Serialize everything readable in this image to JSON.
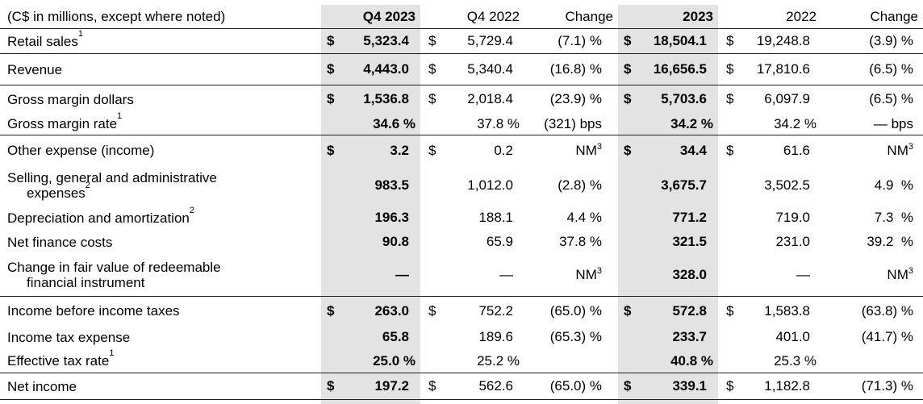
{
  "table": {
    "unit_note": "(C$ in millions, except where noted)",
    "highlight_color": "#e3e3e3",
    "columns": [
      {
        "label": "Q4 2023",
        "hl": true
      },
      {
        "label": "Q4 2022",
        "hl": false
      },
      {
        "label": "Change",
        "hl": false
      },
      {
        "label": "2023",
        "hl": true
      },
      {
        "label": "2022",
        "hl": false
      },
      {
        "label": "Change",
        "hl": false
      }
    ],
    "rows": [
      {
        "id": "retail-sales",
        "rule_below": true,
        "label": [
          {
            "text": "Retail sales",
            "sup": "1"
          }
        ],
        "cells": [
          {
            "d": "$",
            "v": "5,323.4"
          },
          {
            "d": "$",
            "v": "5,729.4"
          },
          {
            "v": "(7.1) %"
          },
          {
            "d": "$",
            "v": "18,504.1"
          },
          {
            "d": "$",
            "v": "19,248.8"
          },
          {
            "v": "(3.9) %"
          }
        ]
      },
      {
        "id": "revenue",
        "rule_below": true,
        "label": [
          {
            "text": "Revenue"
          }
        ],
        "cells": [
          {
            "d": "$",
            "v": "4,443.0"
          },
          {
            "d": "$",
            "v": "5,340.4"
          },
          {
            "v": "(16.8) %"
          },
          {
            "d": "$",
            "v": "16,656.5"
          },
          {
            "d": "$",
            "v": "17,810.6"
          },
          {
            "v": "(6.5) %"
          }
        ]
      },
      {
        "id": "gross-margin-dollars",
        "rule_below": false,
        "label": [
          {
            "text": "Gross margin dollars"
          }
        ],
        "cells": [
          {
            "d": "$",
            "v": "1,536.8"
          },
          {
            "d": "$",
            "v": "2,018.4"
          },
          {
            "v": "(23.9) %"
          },
          {
            "d": "$",
            "v": "5,703.6"
          },
          {
            "d": "$",
            "v": "6,097.9"
          },
          {
            "v": "(6.5) %"
          }
        ]
      },
      {
        "id": "gross-margin-rate",
        "rule_below": true,
        "label": [
          {
            "text": "Gross margin rate",
            "sup": "1"
          }
        ],
        "cells": [
          {
            "v": "34.6 %"
          },
          {
            "v": "37.8 %"
          },
          {
            "v": "(321) bps"
          },
          {
            "v": "34.2 %"
          },
          {
            "v": "34.2 %"
          },
          {
            "v": "— bps"
          }
        ]
      },
      {
        "id": "other-expense",
        "rule_below": false,
        "label": [
          {
            "text": "Other expense (income)"
          }
        ],
        "cells": [
          {
            "d": "$",
            "v": "3.2"
          },
          {
            "d": "$",
            "v": "0.2"
          },
          {
            "v": "NM",
            "sup": "3"
          },
          {
            "d": "$",
            "v": "34.4"
          },
          {
            "d": "$",
            "v": "61.6"
          },
          {
            "v": "NM",
            "sup": "3"
          }
        ]
      },
      {
        "id": "sga-expenses",
        "rule_below": false,
        "label": [
          {
            "text": "Selling, general and administrative"
          },
          {
            "text": "expenses",
            "sup": "2"
          }
        ],
        "cells": [
          {
            "v": "983.5"
          },
          {
            "v": "1,012.0"
          },
          {
            "v": "(2.8) %"
          },
          {
            "v": "3,675.7"
          },
          {
            "v": "3,502.5"
          },
          {
            "v": "4.9  %"
          }
        ]
      },
      {
        "id": "depreciation-amortization",
        "rule_below": false,
        "label": [
          {
            "text": "Depreciation and amortization",
            "sup": "2"
          }
        ],
        "cells": [
          {
            "v": "196.3"
          },
          {
            "v": "188.1"
          },
          {
            "v": "4.4 %"
          },
          {
            "v": "771.2"
          },
          {
            "v": "719.0"
          },
          {
            "v": "7.3  %"
          }
        ]
      },
      {
        "id": "net-finance-costs",
        "rule_below": false,
        "label": [
          {
            "text": "Net finance costs"
          }
        ],
        "cells": [
          {
            "v": "90.8"
          },
          {
            "v": "65.9"
          },
          {
            "v": "37.8 %"
          },
          {
            "v": "321.5"
          },
          {
            "v": "231.0"
          },
          {
            "v": "39.2  %"
          }
        ]
      },
      {
        "id": "change-fair-value",
        "rule_below": true,
        "label": [
          {
            "text": "Change in fair value of redeemable"
          },
          {
            "text": "financial instrument"
          }
        ],
        "cells": [
          {
            "v": "—"
          },
          {
            "v": "—"
          },
          {
            "v": "NM",
            "sup": "3"
          },
          {
            "v": "328.0"
          },
          {
            "v": "—"
          },
          {
            "v": "NM",
            "sup": "3"
          }
        ]
      },
      {
        "id": "income-before-taxes",
        "rule_below": false,
        "label": [
          {
            "text": "Income before income taxes"
          }
        ],
        "cells": [
          {
            "d": "$",
            "v": "263.0"
          },
          {
            "d": "$",
            "v": "752.2"
          },
          {
            "v": "(65.0) %"
          },
          {
            "d": "$",
            "v": "572.8"
          },
          {
            "d": "$",
            "v": "1,583.8"
          },
          {
            "v": "(63.8) %"
          }
        ]
      },
      {
        "id": "income-tax-expense",
        "rule_below": false,
        "label": [
          {
            "text": "Income tax expense"
          }
        ],
        "cells": [
          {
            "v": "65.8"
          },
          {
            "v": "189.6"
          },
          {
            "v": "(65.3) %"
          },
          {
            "v": "233.7"
          },
          {
            "v": "401.0"
          },
          {
            "v": "(41.7) %"
          }
        ]
      },
      {
        "id": "effective-tax-rate",
        "rule_below": true,
        "label": [
          {
            "text": "Effective tax rate",
            "sup": "1"
          }
        ],
        "cells": [
          {
            "v": "25.0 %"
          },
          {
            "v": "25.2 %"
          },
          {
            "v": ""
          },
          {
            "v": "40.8 %"
          },
          {
            "v": "25.3 %"
          },
          {
            "v": ""
          }
        ]
      },
      {
        "id": "net-income",
        "rule_below": true,
        "label": [
          {
            "text": "Net income"
          }
        ],
        "cells": [
          {
            "d": "$",
            "v": "197.2"
          },
          {
            "d": "$",
            "v": "562.6"
          },
          {
            "v": "(65.0) %"
          },
          {
            "d": "$",
            "v": "339.1"
          },
          {
            "d": "$",
            "v": "1,182.8"
          },
          {
            "v": "(71.3) %"
          }
        ]
      }
    ]
  }
}
